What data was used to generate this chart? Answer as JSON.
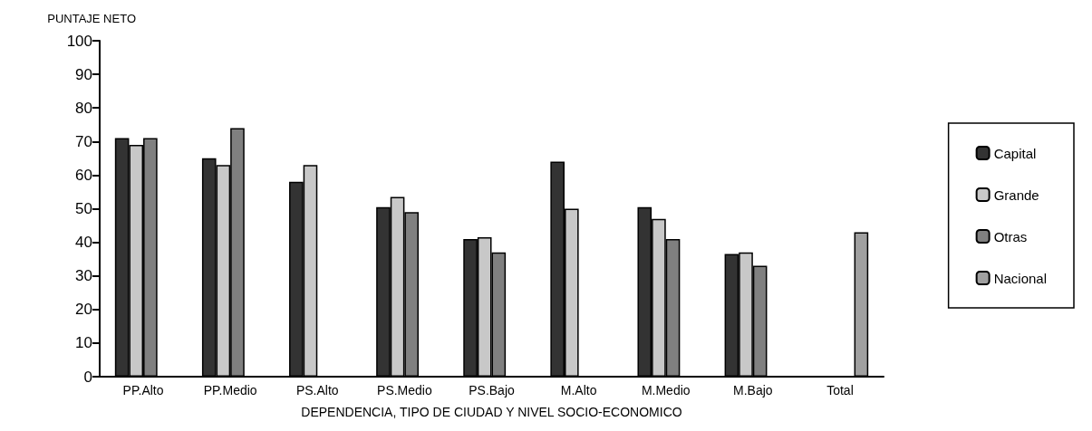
{
  "chart_data": {
    "type": "bar",
    "ylabel": "PUNTAJE NETO",
    "xlabel": "DEPENDENCIA, TIPO DE CIUDAD Y NIVEL SOCIO-ECONOMICO",
    "categories": [
      "PP.Alto",
      "PP.Medio",
      "PS.Alto",
      "PS.Medio",
      "PS.Bajo",
      "M.Alto",
      "M.Medio",
      "M.Bajo",
      "Total"
    ],
    "series": [
      {
        "name": "Capital",
        "color": "#333333",
        "values": [
          71,
          65,
          58,
          50.5,
          41,
          64,
          50.5,
          36.5,
          null
        ]
      },
      {
        "name": "Grande",
        "color": "#c8c8c8",
        "values": [
          69,
          63,
          63,
          53.5,
          41.5,
          50,
          47,
          37,
          null
        ]
      },
      {
        "name": "Otras",
        "color": "#808080",
        "values": [
          71,
          74,
          null,
          49,
          37,
          null,
          41,
          33,
          null
        ]
      },
      {
        "name": "Nacional",
        "color": "#a0a0a0",
        "values": [
          null,
          null,
          null,
          null,
          null,
          null,
          null,
          null,
          43
        ]
      }
    ],
    "ylim": [
      0,
      100
    ],
    "yticks": [
      0,
      10,
      20,
      30,
      40,
      50,
      60,
      70,
      80,
      90,
      100
    ],
    "grid": false,
    "legend": "right"
  }
}
